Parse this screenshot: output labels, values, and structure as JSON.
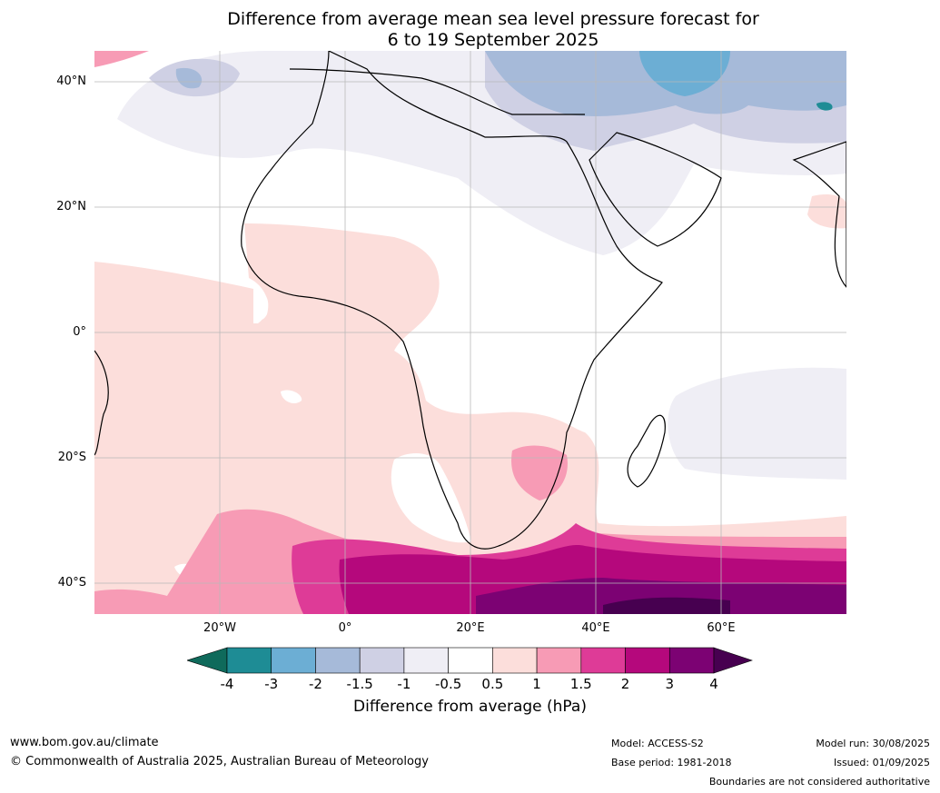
{
  "title_line1": "Difference from average mean sea level pressure forecast for",
  "title_line2": "6 to 19 September 2025",
  "lat_labels": [
    "40°N",
    "20°N",
    "0°",
    "20°S",
    "40°S"
  ],
  "lon_labels": [
    "20°W",
    "0°",
    "20°E",
    "40°E",
    "60°E"
  ],
  "colorbar": {
    "ticks": [
      "-4",
      "-3",
      "-2",
      "-1.5",
      "-1",
      "-0.5",
      "0.5",
      "1",
      "1.5",
      "2",
      "3",
      "4"
    ],
    "colors": [
      "#1e8c95",
      "#6caed4",
      "#a6bad9",
      "#cfd0e4",
      "#efeef5",
      "#ffffff",
      "#fcdedb",
      "#f79bb5",
      "#de3b97",
      "#b5087c",
      "#7c0273"
    ],
    "under_color": "#0f6a5b",
    "over_color": "#470050",
    "label": "Difference from average (hPa)"
  },
  "footer": {
    "website": "www.bom.gov.au/climate",
    "copyright": "© Commonwealth of Australia 2025, Australian Bureau of Meteorology",
    "model": "Model: ACCESS-S2",
    "base_period": "Base period: 1981-2018",
    "model_run": "Model run: 30/08/2025",
    "issued": "Issued: 01/09/2025",
    "disclaimer": "Boundaries are not considered authoritative"
  }
}
